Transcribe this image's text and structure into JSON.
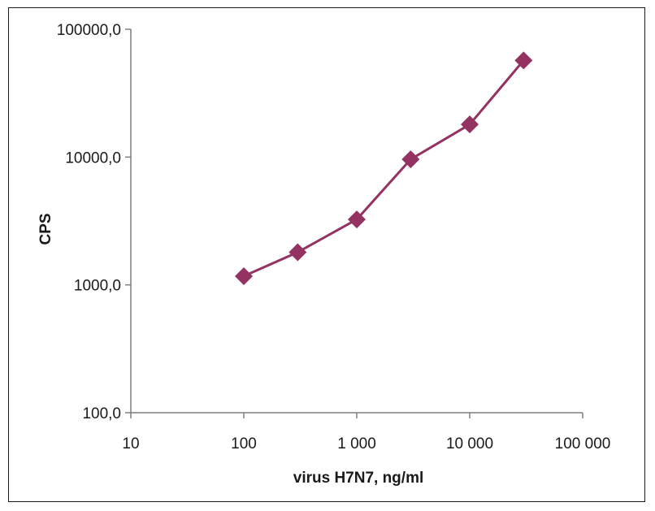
{
  "chart_data": {
    "type": "line",
    "xscale": "log",
    "yscale": "log",
    "xlabel": "virus H7N7, ng/ml",
    "ylabel": "CPS",
    "xlim": [
      10,
      100000
    ],
    "ylim": [
      100,
      100000
    ],
    "x_ticks": [
      10,
      100,
      1000,
      10000,
      100000
    ],
    "x_tick_labels": [
      "10",
      "100",
      "1 000",
      "10 000",
      "100 000"
    ],
    "y_ticks": [
      100,
      1000,
      10000,
      100000
    ],
    "y_tick_labels": [
      "100,0",
      "1000,0",
      "10000,0",
      "100000,0"
    ],
    "grid": false,
    "legend": "none",
    "series": [
      {
        "color": "#943262",
        "marker": "diamond",
        "x": [
          100,
          300,
          1000,
          3000,
          10000,
          30000
        ],
        "y": [
          1170,
          1800,
          3250,
          9600,
          18000,
          57000
        ]
      }
    ]
  }
}
